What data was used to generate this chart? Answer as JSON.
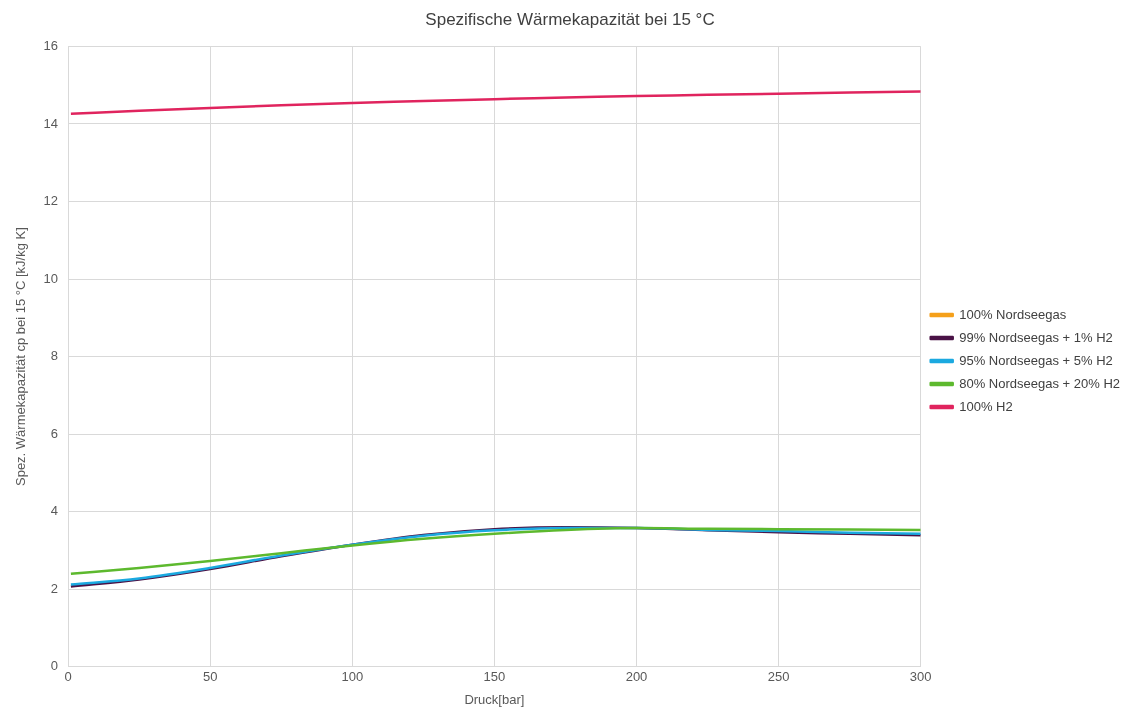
{
  "chart_data": {
    "type": "line",
    "title": "Spezifische Wärmekapazität bei 15 °C",
    "xlabel": "Druck[bar]",
    "ylabel": "Spez. Wärmekapazität cp bei 15 °C [kJ/kg K]",
    "x": [
      1,
      25,
      50,
      75,
      100,
      125,
      150,
      175,
      200,
      225,
      250,
      275,
      300
    ],
    "series": [
      {
        "name": "100% Nordseegas",
        "color": "#f5a01a",
        "values": [
          null,
          null,
          null,
          null,
          null,
          null,
          null,
          null,
          null,
          null,
          null,
          null,
          null
        ]
      },
      {
        "name": "99% Nordseegas + 1% H2",
        "color": "#4a1246",
        "values": [
          2.07,
          2.25,
          2.52,
          2.85,
          3.15,
          3.4,
          3.55,
          3.6,
          3.58,
          3.52,
          3.47,
          3.43,
          3.39
        ]
      },
      {
        "name": "95% Nordseegas + 5% H2",
        "color": "#1ba9e0",
        "values": [
          2.12,
          2.28,
          2.55,
          2.87,
          3.15,
          3.38,
          3.52,
          3.58,
          3.58,
          3.53,
          3.5,
          3.46,
          3.43
        ]
      },
      {
        "name": "80% Nordseegas + 20% H2",
        "color": "#5db92e",
        "values": [
          2.4,
          2.55,
          2.73,
          2.93,
          3.13,
          3.3,
          3.43,
          3.53,
          3.58,
          3.56,
          3.55,
          3.54,
          3.53
        ]
      },
      {
        "name": "100% H2",
        "color": "#e0245e",
        "values": [
          14.26,
          14.34,
          14.41,
          14.48,
          14.54,
          14.59,
          14.64,
          14.68,
          14.72,
          14.75,
          14.78,
          14.81,
          14.84
        ]
      }
    ],
    "xlim": [
      0,
      300
    ],
    "xticks": [
      0,
      50,
      100,
      150,
      200,
      250,
      300
    ],
    "ylim": [
      0,
      16
    ],
    "yticks": [
      0,
      2,
      4,
      6,
      8,
      10,
      12,
      14,
      16
    ],
    "grid": true,
    "legend": "right",
    "marker": "none",
    "line_style": "solid"
  }
}
